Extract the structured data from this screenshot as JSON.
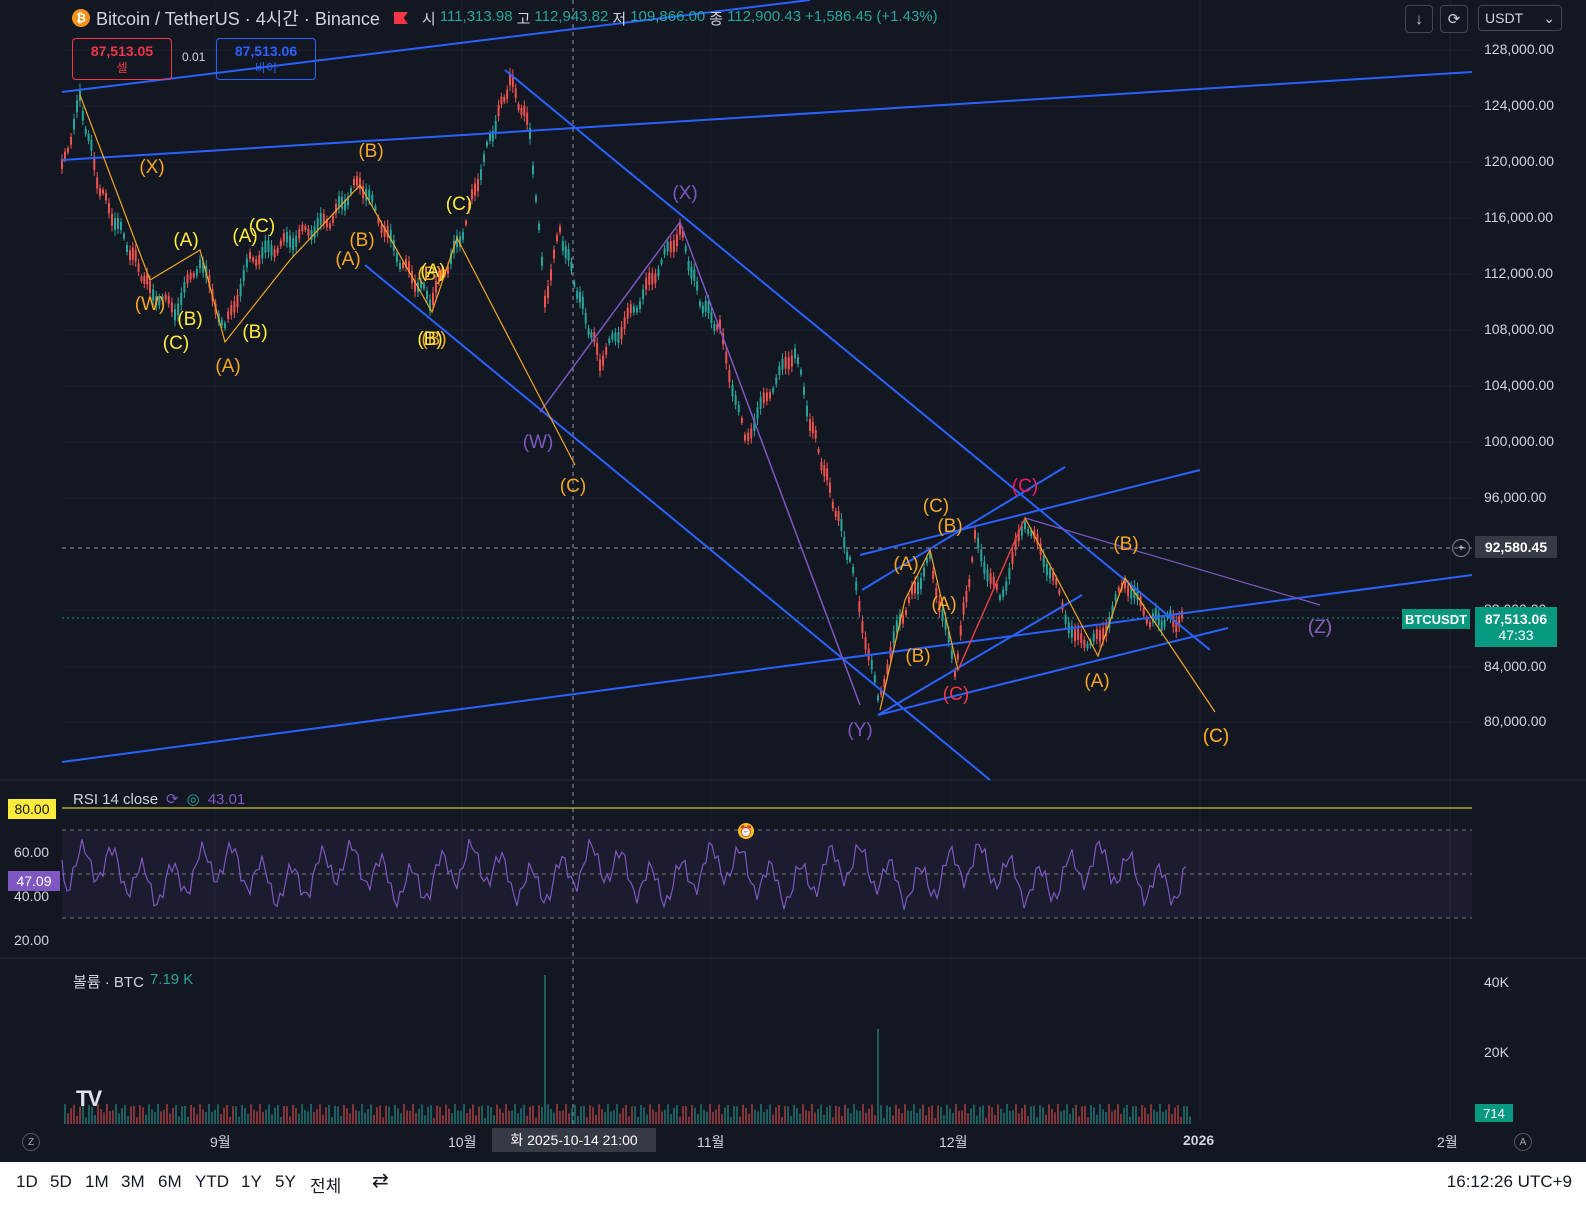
{
  "header": {
    "title": "Bitcoin / TetherUS · 4시간 · Binance",
    "ohlc": [
      {
        "k": "시",
        "v": "111,313.98"
      },
      {
        "k": "고",
        "v": "112,943.82"
      },
      {
        "k": "저",
        "v": "109,866.00"
      },
      {
        "k": "종",
        "v": "112,900.43"
      },
      {
        "k": "",
        "v": "+1,586.45 (+1.43%)"
      }
    ]
  },
  "trade": {
    "sell_price": "87,513.05",
    "sell_label": "셀",
    "buy_price": "87,513.06",
    "buy_label": "바이",
    "spread": "0.01"
  },
  "toolbar": {
    "currency": "USDT",
    "down_icon": "↓",
    "refresh_icon": "⟳",
    "chevron": "⌄"
  },
  "price_axis": {
    "ticks": [
      "128,000.00",
      "124,000.00",
      "120,000.00",
      "116,000.00",
      "112,000.00",
      "108,000.00",
      "104,000.00",
      "100,000.00",
      "96,000.00",
      "88,000.00",
      "84,000.00",
      "80,000.00"
    ],
    "crosshair_price": "92,580.45",
    "symbol_tag": "BTCUSDT",
    "current_price": "87,513.06",
    "countdown": "47:33"
  },
  "rsi": {
    "legend": "RSI 14 close",
    "value": "43.01",
    "level_tag": "80.00",
    "current_tag": "47.09",
    "ticks": [
      "60.00",
      "40.00",
      "20.00"
    ]
  },
  "volume": {
    "legend": "볼륨 · BTC",
    "value": "7.19 K",
    "ticks": [
      "40K",
      "20K"
    ],
    "current_tag": "714"
  },
  "time_axis": {
    "labels": [
      {
        "text": "9월"
      },
      {
        "text": "10월"
      },
      {
        "text": "11월"
      },
      {
        "text": "12월"
      },
      {
        "text": "2026"
      },
      {
        "text": "2월"
      }
    ],
    "crosshair_time": "화 2025-10-14   21:00",
    "z_btn": "Z",
    "a_btn": "A"
  },
  "wave_labels": [
    {
      "t": "(X)",
      "c": "#f5a623"
    },
    {
      "t": "(W)",
      "c": "#f5a623"
    },
    {
      "t": "(C)",
      "c": "#f5a623"
    },
    {
      "t": "(Z)",
      "c": "#f5a623"
    },
    {
      "t": "(B)",
      "c": "#f5a623"
    },
    {
      "t": "(A)",
      "c": "#ffeb3b"
    },
    {
      "t": "(C)",
      "c": "#ffeb3b"
    },
    {
      "t": "(B)",
      "c": "#ffeb3b"
    },
    {
      "t": "(A)",
      "c": "#ffeb3b"
    },
    {
      "t": "(C)",
      "c": "#ffeb3b"
    },
    {
      "t": "(B)",
      "c": "#ffeb3b"
    },
    {
      "t": "(B)",
      "c": "#f5a623"
    },
    {
      "t": "(A)",
      "c": "#f5a623"
    },
    {
      "t": "(A)",
      "c": "#f5a623"
    },
    {
      "t": "(B)",
      "c": "#f5a623"
    },
    {
      "t": "(B)",
      "c": "#f5a623"
    },
    {
      "t": "(A)",
      "c": "#ffeb3b"
    },
    {
      "t": "(B)",
      "c": "#ffeb3b"
    },
    {
      "t": "(C)",
      "c": "#ffeb3b"
    },
    {
      "t": "(X)",
      "c": "#7e57c2"
    },
    {
      "t": "(W)",
      "c": "#7e57c2"
    },
    {
      "t": "(C)",
      "c": "#f5a623"
    },
    {
      "t": "(Y)",
      "c": "#7e57c2"
    },
    {
      "t": "(A)",
      "c": "#f5a623"
    },
    {
      "t": "(B)",
      "c": "#f5a623"
    },
    {
      "t": "(A)",
      "c": "#f5a623"
    },
    {
      "t": "(C)",
      "c": "#f5a623"
    },
    {
      "t": "(B)",
      "c": "#f5a623"
    },
    {
      "t": "(C)",
      "c": "#f23645"
    },
    {
      "t": "(C)",
      "c": "#e91e63"
    },
    {
      "t": "(B)",
      "c": "#f5a623"
    },
    {
      "t": "(A)",
      "c": "#f5a623"
    },
    {
      "t": "(Z)",
      "c": "#7e57c2"
    },
    {
      "t": "(C)",
      "c": "#f5a623"
    }
  ],
  "bottom_bar": {
    "ranges": [
      "1D",
      "5D",
      "1M",
      "3M",
      "6M",
      "YTD",
      "1Y",
      "5Y",
      "전체"
    ],
    "clock": "16:12:26 UTC+9"
  },
  "logo": "TV",
  "colors": {
    "up": "#26a69a",
    "down": "#ef5350",
    "trend": "#2962ff",
    "rsi": "#7e57c2",
    "bg": "#131722"
  }
}
